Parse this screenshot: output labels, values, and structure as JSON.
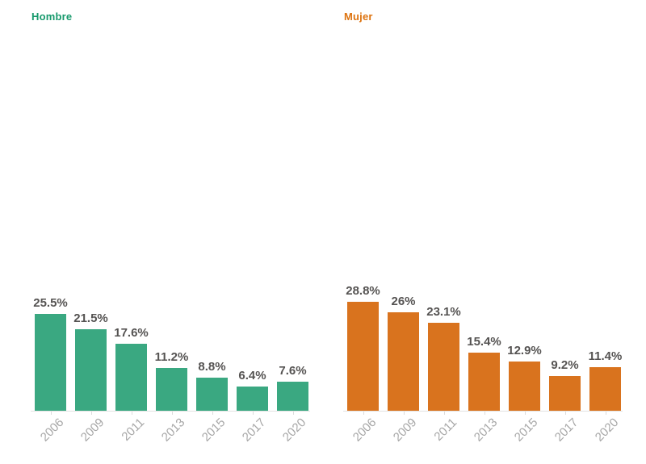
{
  "page": {
    "background": "#ffffff"
  },
  "styles": {
    "value_label_color": "#555352",
    "tick_label_color": "#a6a6a6",
    "axis_line_color": "#e3e3e3"
  },
  "chart_data": [
    {
      "type": "bar",
      "title": "Hombre",
      "title_color": "#189a6d",
      "bar_color": "#3aa881",
      "categories": [
        "2006",
        "2009",
        "2011",
        "2013",
        "2015",
        "2017",
        "2020"
      ],
      "values": [
        25.5,
        21.5,
        17.6,
        11.2,
        8.8,
        6.4,
        7.6
      ],
      "value_labels": [
        "25.5%",
        "21.5%",
        "17.6%",
        "11.2%",
        "8.8%",
        "6.4%",
        "7.6%"
      ],
      "xlabel": "",
      "ylabel": "",
      "ylim": [
        0,
        100
      ],
      "grid": false,
      "legend": "none"
    },
    {
      "type": "bar",
      "title": "Mujer",
      "title_color": "#dd730f",
      "bar_color": "#d9731e",
      "categories": [
        "2006",
        "2009",
        "2011",
        "2013",
        "2015",
        "2017",
        "2020"
      ],
      "values": [
        28.8,
        26,
        23.1,
        15.4,
        12.9,
        9.2,
        11.4
      ],
      "value_labels": [
        "28.8%",
        "26%",
        "23.1%",
        "15.4%",
        "12.9%",
        "9.2%",
        "11.4%"
      ],
      "xlabel": "",
      "ylabel": "",
      "ylim": [
        0,
        100
      ],
      "grid": false,
      "legend": "none"
    }
  ]
}
